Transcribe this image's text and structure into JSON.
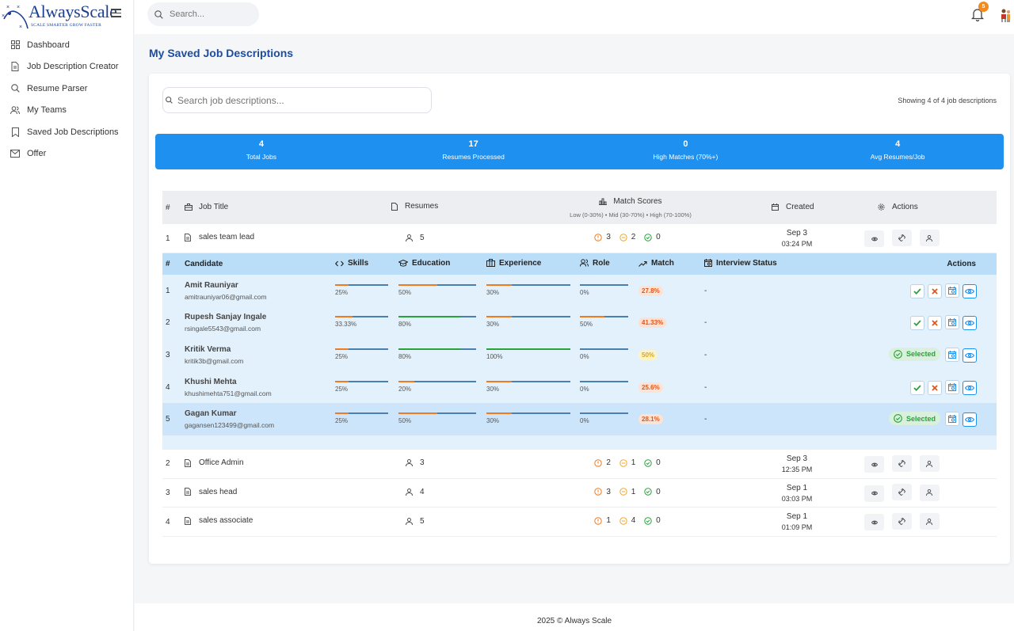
{
  "brand": {
    "name": "AlwaysScale",
    "tagline": "SCALE SMARTER GROW FASTER"
  },
  "sidebar": {
    "items": [
      {
        "label": "Dashboard",
        "icon": "grid-icon"
      },
      {
        "label": "Job Description Creator",
        "icon": "document-icon"
      },
      {
        "label": "Resume Parser",
        "icon": "search-icon"
      },
      {
        "label": "My Teams",
        "icon": "users-icon"
      },
      {
        "label": "Saved Job Descriptions",
        "icon": "bookmark-icon"
      },
      {
        "label": "Offer",
        "icon": "mail-icon"
      }
    ]
  },
  "topbar": {
    "search_placeholder": "Search...",
    "notification_count": "5"
  },
  "page": {
    "title": "My Saved Job Descriptions"
  },
  "jd_search": {
    "placeholder": "Search job descriptions..."
  },
  "showing_text": "Showing 4 of 4 job descriptions",
  "stats": [
    {
      "value": "4",
      "label": "Total Jobs"
    },
    {
      "value": "17",
      "label": "Resumes Processed"
    },
    {
      "value": "0",
      "label": "High Matches (70%+)"
    },
    {
      "value": "4",
      "label": "Avg Resumes/Job"
    }
  ],
  "jobs_table": {
    "headers": {
      "num": "#",
      "title": "Job Title",
      "resumes": "Resumes",
      "match": "Match Scores",
      "match_sub": "Low (0-30%) • Mid (30-70%) • High (70-100%)",
      "created": "Created",
      "actions": "Actions"
    },
    "rows": [
      {
        "num": "1",
        "title": "sales team lead",
        "resumes": "5",
        "low": "3",
        "mid": "2",
        "high": "0",
        "date": "Sep 3",
        "time": "03:24 PM"
      },
      {
        "num": "2",
        "title": "Office Admin",
        "resumes": "3",
        "low": "2",
        "mid": "1",
        "high": "0",
        "date": "Sep 3",
        "time": "12:35 PM"
      },
      {
        "num": "3",
        "title": "sales head",
        "resumes": "4",
        "low": "3",
        "mid": "1",
        "high": "0",
        "date": "Sep 1",
        "time": "03:03 PM"
      },
      {
        "num": "4",
        "title": "sales associate",
        "resumes": "5",
        "low": "1",
        "mid": "4",
        "high": "0",
        "date": "Sep 1",
        "time": "01:09 PM"
      }
    ]
  },
  "candidates_table": {
    "headers": {
      "num": "#",
      "candidate": "Candidate",
      "skills": "Skills",
      "education": "Education",
      "experience": "Experience",
      "role": "Role",
      "match": "Match",
      "interview": "Interview Status",
      "actions": "Actions"
    },
    "selected_label": "Selected",
    "rows": [
      {
        "num": "1",
        "name": "Amit Rauniyar",
        "email": "amitrauniyar06@gmail.com",
        "skills": "25%",
        "education": "50%",
        "experience": "30%",
        "role": "0%",
        "match": "27.8%",
        "interview": "-",
        "status": "pending"
      },
      {
        "num": "2",
        "name": "Rupesh Sanjay Ingale",
        "email": "rsingale5543@gmail.com",
        "skills": "33.33%",
        "education": "80%",
        "experience": "30%",
        "role": "50%",
        "match": "41.33%",
        "interview": "-",
        "status": "pending"
      },
      {
        "num": "3",
        "name": "Kritik Verma",
        "email": "kritik3b@gmail.com",
        "skills": "25%",
        "education": "80%",
        "experience": "100%",
        "role": "0%",
        "match": "50%",
        "interview": "-",
        "status": "selected"
      },
      {
        "num": "4",
        "name": "Khushi Mehta",
        "email": "khushimehta751@gmail.com",
        "skills": "25%",
        "education": "20%",
        "experience": "30%",
        "role": "0%",
        "match": "25.6%",
        "interview": "-",
        "status": "pending"
      },
      {
        "num": "5",
        "name": "Gagan Kumar",
        "email": "gagansen123499@gmail.com",
        "skills": "25%",
        "education": "50%",
        "experience": "30%",
        "role": "0%",
        "match": "28.1%",
        "interview": "-",
        "status": "selected"
      }
    ]
  },
  "colors": {
    "primary": "#1e90f0",
    "title": "#1c4da1",
    "low": "#f07a1e",
    "mid": "#f2a72b",
    "high": "#27a33a"
  },
  "footer": {
    "text": "2025 © Always Scale"
  }
}
